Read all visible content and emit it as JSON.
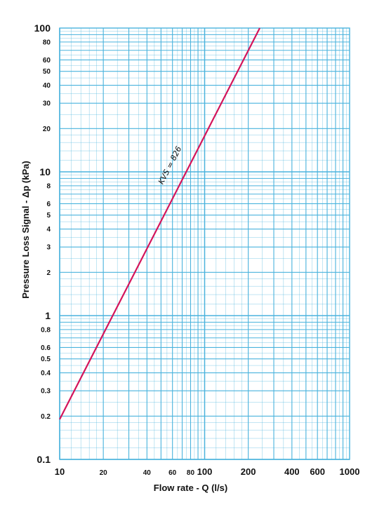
{
  "chart_data": {
    "type": "line",
    "x_scale": "log",
    "y_scale": "log",
    "xlim": [
      10,
      1000
    ],
    "ylim": [
      0.1,
      100
    ],
    "xlabel": "Flow rate - Q (l/s)",
    "ylabel": "Pressure Loss Signal  - Δp (kPa)",
    "grid": true,
    "colors": {
      "grid": "#4ab3dd",
      "curve": "#d4145a",
      "text": "#111111"
    },
    "x_ticks": [
      {
        "value": 10,
        "label": "10"
      },
      {
        "value": 20,
        "label": "20"
      },
      {
        "value": 40,
        "label": "40"
      },
      {
        "value": 60,
        "label": "60"
      },
      {
        "value": 80,
        "label": "80"
      },
      {
        "value": 100,
        "label": "100"
      },
      {
        "value": 200,
        "label": "200"
      },
      {
        "value": 400,
        "label": "400"
      },
      {
        "value": 600,
        "label": "600"
      },
      {
        "value": 1000,
        "label": "1000"
      }
    ],
    "y_ticks": [
      {
        "value": 0.1,
        "label": "0.1"
      },
      {
        "value": 0.2,
        "label": "0.2"
      },
      {
        "value": 0.3,
        "label": "0.3"
      },
      {
        "value": 0.4,
        "label": "0.4"
      },
      {
        "value": 0.5,
        "label": "0.5"
      },
      {
        "value": 0.6,
        "label": "0.6"
      },
      {
        "value": 0.8,
        "label": "0.8"
      },
      {
        "value": 1,
        "label": "1"
      },
      {
        "value": 2,
        "label": "2"
      },
      {
        "value": 3,
        "label": "3"
      },
      {
        "value": 4,
        "label": "4"
      },
      {
        "value": 5,
        "label": "5"
      },
      {
        "value": 6,
        "label": "6"
      },
      {
        "value": 8,
        "label": "8"
      },
      {
        "value": 10,
        "label": "10"
      },
      {
        "value": 20,
        "label": "20"
      },
      {
        "value": 30,
        "label": "30"
      },
      {
        "value": 40,
        "label": "40"
      },
      {
        "value": 50,
        "label": "50"
      },
      {
        "value": 60,
        "label": "60"
      },
      {
        "value": 80,
        "label": "80"
      },
      {
        "value": 100,
        "label": "100"
      }
    ],
    "series": [
      {
        "label": "KVS = 826",
        "x": [
          10,
          240
        ],
        "y": [
          0.19,
          100
        ]
      }
    ]
  }
}
